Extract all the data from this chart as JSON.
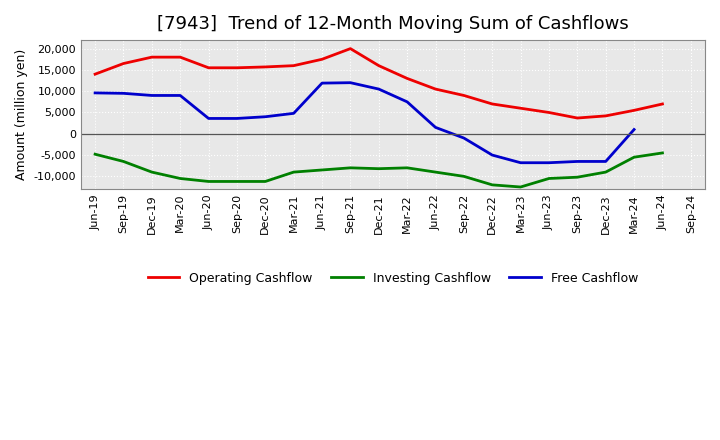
{
  "title": "[7943]  Trend of 12-Month Moving Sum of Cashflows",
  "ylabel": "Amount (million yen)",
  "x_labels": [
    "Jun-19",
    "Sep-19",
    "Dec-19",
    "Mar-20",
    "Jun-20",
    "Sep-20",
    "Dec-20",
    "Mar-21",
    "Jun-21",
    "Sep-21",
    "Dec-21",
    "Mar-22",
    "Jun-22",
    "Sep-22",
    "Dec-22",
    "Mar-23",
    "Jun-23",
    "Sep-23",
    "Dec-23",
    "Mar-24",
    "Jun-24",
    "Sep-24"
  ],
  "operating": [
    14000,
    16500,
    18000,
    18000,
    15500,
    15500,
    15700,
    16000,
    17500,
    20000,
    16000,
    13000,
    10500,
    9000,
    7000,
    6000,
    5000,
    3700,
    4200,
    5500,
    7000,
    null
  ],
  "investing": [
    -4800,
    -6500,
    -9000,
    -10500,
    -11200,
    -11200,
    -11200,
    -9000,
    -8500,
    -8000,
    -8200,
    -8000,
    -9000,
    -10000,
    -12000,
    -12500,
    -10500,
    -10200,
    -9000,
    -5500,
    -4500,
    null
  ],
  "free": [
    9600,
    9500,
    9000,
    9000,
    3600,
    3600,
    4000,
    4800,
    11900,
    12000,
    10500,
    7500,
    1500,
    -1000,
    -5000,
    -6800,
    -6800,
    -6500,
    -6500,
    1000,
    null,
    null
  ],
  "operating_color": "#ee0000",
  "investing_color": "#008000",
  "free_color": "#0000cc",
  "ylim": [
    -13000,
    22000
  ],
  "yticks": [
    -10000,
    -5000,
    0,
    5000,
    10000,
    15000,
    20000
  ],
  "plot_bg_color": "#e8e8e8",
  "fig_bg_color": "#ffffff",
  "grid_color": "#ffffff",
  "title_fontsize": 13,
  "label_fontsize": 9,
  "tick_fontsize": 8,
  "legend_fontsize": 9,
  "linewidth": 2.0
}
